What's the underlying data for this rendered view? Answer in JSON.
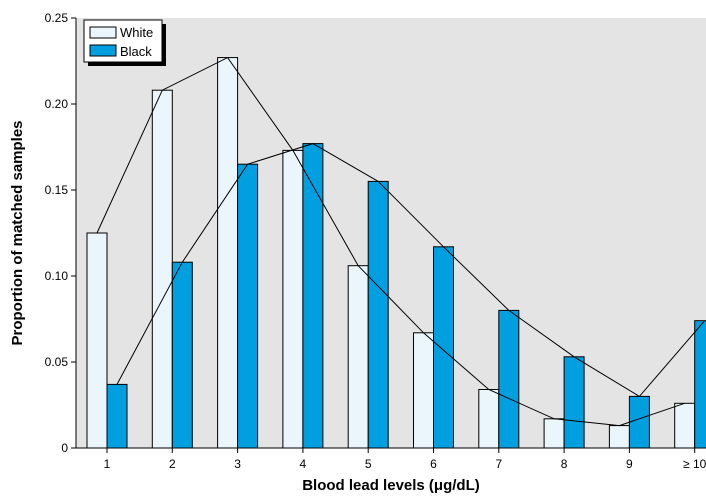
{
  "chart_data": {
    "type": "bar",
    "title": "",
    "xlabel": "Blood lead levels (μg/dL)",
    "ylabel": "Proportion of matched samples",
    "categories": [
      "1",
      "2",
      "3",
      "4",
      "5",
      "6",
      "7",
      "8",
      "9",
      "≥ 10"
    ],
    "series": [
      {
        "name": "White",
        "values": [
          0.125,
          0.208,
          0.227,
          0.173,
          0.106,
          0.067,
          0.034,
          0.017,
          0.013,
          0.026
        ]
      },
      {
        "name": "Black",
        "values": [
          0.037,
          0.108,
          0.165,
          0.177,
          0.155,
          0.117,
          0.08,
          0.053,
          0.03,
          0.074
        ]
      }
    ],
    "ylim": [
      0,
      0.25
    ],
    "yticks": [
      "0",
      "0.05",
      "0.10",
      "0.15",
      "0.20",
      "0.25"
    ],
    "ytick_values": [
      0,
      0.05,
      0.1,
      0.15,
      0.2,
      0.25
    ],
    "grid": false,
    "legend_position": "top-left",
    "overlay": "line connecting bar tops for each series",
    "colors": {
      "White": "#eaf6fb",
      "Black": "#00a0e0",
      "plot_background": "#e4e4e4",
      "outline": "#000000"
    }
  }
}
